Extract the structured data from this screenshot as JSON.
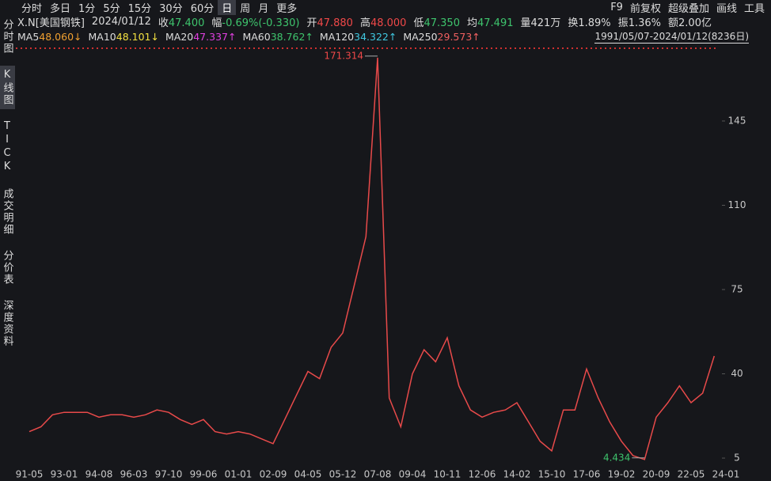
{
  "toolbar": {
    "periods": [
      "分时",
      "多日",
      "1分",
      "5分",
      "15分",
      "30分",
      "60分",
      "日",
      "周",
      "月",
      "更多"
    ],
    "selected": "日",
    "tools": [
      "F9",
      "前复权",
      "超级叠加",
      "画线",
      "工具"
    ]
  },
  "quote": {
    "symbol": "X.N[美国钢铁]",
    "date": "2024/01/12",
    "fields": [
      {
        "label": "收",
        "value": "47.400",
        "color": "#3ec46d"
      },
      {
        "label": "幅",
        "value": "-0.69%(-0.330)",
        "color": "#3ec46d"
      },
      {
        "label": "开",
        "value": "47.880",
        "color": "#f04848"
      },
      {
        "label": "高",
        "value": "48.000",
        "color": "#f04848"
      },
      {
        "label": "低",
        "value": "47.350",
        "color": "#3ec46d"
      },
      {
        "label": "均",
        "value": "47.491",
        "color": "#3ec46d"
      },
      {
        "label": "量",
        "value": "421万",
        "color": "#dddddd"
      },
      {
        "label": "换",
        "value": "1.89%",
        "color": "#dddddd"
      },
      {
        "label": "振",
        "value": "1.36%",
        "color": "#dddddd"
      },
      {
        "label": "额",
        "value": "2.00亿",
        "color": "#dddddd"
      }
    ]
  },
  "ma": [
    {
      "label": "MA5",
      "value": "48.060↓",
      "color": "#f0a030"
    },
    {
      "label": "MA10",
      "value": "48.101↓",
      "color": "#f2e040"
    },
    {
      "label": "MA20",
      "value": "47.337↑",
      "color": "#e040e0"
    },
    {
      "label": "MA60",
      "value": "38.762↑",
      "color": "#3ec46d"
    },
    {
      "label": "MA120",
      "value": "34.322↑",
      "color": "#40c8e0"
    },
    {
      "label": "MA250",
      "value": "29.573↑",
      "color": "#f06060"
    }
  ],
  "range": "1991/05/07-2024/01/12(8236日)",
  "side_tabs": [
    "分时图",
    "K线图",
    "TICK",
    "成交明细",
    "分价表",
    "深度资料"
  ],
  "selected_tab": "K线图",
  "chart_data": {
    "type": "line",
    "color": "#e84a4a",
    "categories": [
      "91-05",
      null,
      null,
      "93-01",
      null,
      null,
      "94-08",
      null,
      null,
      "96-03",
      null,
      null,
      "97-10",
      null,
      null,
      "99-06",
      null,
      null,
      "01-01",
      null,
      null,
      "02-09",
      null,
      null,
      "04-05",
      null,
      null,
      "05-12",
      null,
      null,
      "07-08",
      null,
      null,
      "09-04",
      null,
      null,
      "10-11",
      null,
      null,
      "12-06",
      null,
      null,
      "14-02",
      null,
      null,
      "15-10",
      null,
      null,
      "17-06",
      null,
      null,
      "19-02",
      null,
      null,
      "20-09",
      null,
      null,
      "22-05",
      null,
      null,
      "24-01"
    ],
    "values": [
      16,
      18,
      23,
      24,
      24,
      24,
      22,
      23,
      23,
      22,
      23,
      25,
      24,
      21,
      19,
      21,
      16,
      15,
      16,
      15,
      13,
      11,
      21,
      31,
      41,
      38,
      51,
      57,
      77,
      97,
      171.314,
      30,
      18,
      40,
      50,
      45,
      55,
      35,
      25,
      22,
      24,
      25,
      28,
      20,
      12,
      8,
      25,
      25,
      42,
      30,
      20,
      12,
      6,
      4.434,
      22,
      28,
      35,
      28,
      32,
      47.4,
      null
    ],
    "annotations": [
      171.314,
      4.434
    ],
    "ylim": [
      1.4,
      173.9
    ],
    "yticks": [
      5,
      40,
      75,
      110,
      145
    ]
  }
}
